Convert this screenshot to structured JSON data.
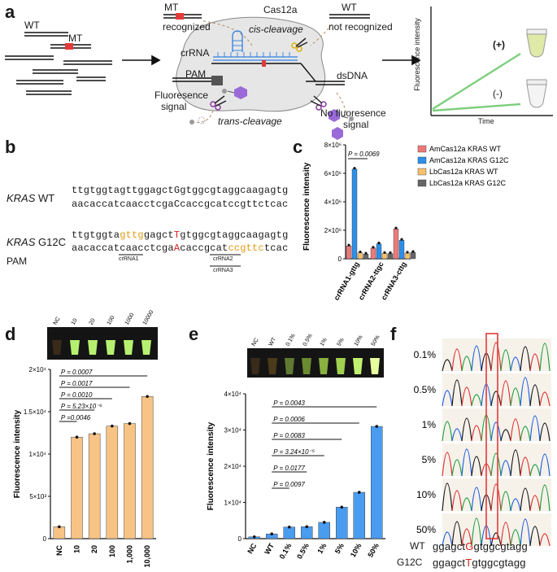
{
  "panels": [
    "a",
    "b",
    "c",
    "d",
    "e",
    "f"
  ],
  "panel_a": {
    "wt": "WT",
    "mt": "MT",
    "mt_recognized": "recognized",
    "cas": "Cas12a",
    "cis": "cis-cleavage",
    "crrna": "crRNA",
    "wt_right": "WT",
    "not_recognized": "not recognized",
    "pam": "PAM",
    "dsdna": "dsDNA",
    "fluor_signal_1": "Fluoresence",
    "fluor_signal_2": "signal",
    "trans": "trans-cleavage",
    "no_fluor_1": "No fluoresence",
    "no_fluor_2": "signal",
    "plot_ylabel": "Fluorescence intensity",
    "plot_xlabel": "Time",
    "plus": "(+)",
    "minus": "(-)"
  },
  "panel_b": {
    "kras_wt_label": "KRAS",
    "wt_suffix": "WT",
    "g12c_label": "KRAS",
    "g12c_suffix": "G12C",
    "pam": "PAM",
    "wt_top": "ttgtggtagttggagctGgtggcgtaggcaagagtg",
    "wt_bottom": "aacaccatcaacctcgaCcaccgcatccgttctcac",
    "g12c_top_1": "ttgtggta",
    "g12c_top_pam": "gttg",
    "g12c_top_2": "gagct",
    "g12c_top_mut": "T",
    "g12c_top_3": "gtggcgtaggcaagagtg",
    "g12c_bottom_1": "aacaccatcaacctcga",
    "g12c_bottom_mut": "A",
    "g12c_bottom_2": "caccgcat",
    "g12c_bottom_pam": "ccgttc",
    "g12c_bottom_3": "tcac",
    "crrna1": "crRNA1",
    "crrna2": "crRNA2",
    "crrna3": "crRNA3"
  },
  "chart_data": [
    {
      "panel": "c",
      "type": "bar",
      "ylabel": "Fluorescence intensity",
      "categories": [
        "crRNA1-gttg",
        "crRNA2-ttgc",
        "crRNA3-cttg"
      ],
      "ylim": [
        0,
        8000000
      ],
      "yticks": [
        "0",
        "2×10⁶",
        "4×10⁶",
        "6×10⁶",
        "8×10⁶"
      ],
      "series": [
        {
          "name": "AmCas12a KRAS WT",
          "values": [
            900000,
            750000,
            2100000
          ],
          "color": "#ec7a7a"
        },
        {
          "name": "AmCas12a KRAS G12C",
          "values": [
            6300000,
            1050000,
            1300000
          ],
          "color": "#2e8fe6"
        },
        {
          "name": "LbCas12a KRAS WT",
          "values": [
            420000,
            380000,
            400000
          ],
          "color": "#f6c070"
        },
        {
          "name": "LbCas12a KRAS G12C",
          "values": [
            330000,
            370000,
            450000
          ],
          "color": "#666666"
        }
      ],
      "annotations": [
        "P = 0.0069"
      ],
      "legend": "top-right"
    },
    {
      "panel": "d",
      "type": "bar",
      "ylabel": "Fluorescence intensity",
      "categories": [
        "NC",
        "10",
        "20",
        "100",
        "1,000",
        "10,000"
      ],
      "tube_labels": [
        "NC",
        "10",
        "20",
        "100",
        "1000",
        "10000"
      ],
      "values": [
        1400,
        12000,
        12400,
        13300,
        13600,
        16800
      ],
      "ylim": [
        0,
        20000
      ],
      "yticks": [
        "0",
        "5×10³",
        "1×10⁴",
        "1.5×10⁴",
        "2×10⁴"
      ],
      "color": "#f8c486",
      "annotations": [
        "P = 0.0007",
        "P = 0.0017",
        "P = 0.0010",
        "P = 5.23×10⁻⁶",
        "P =0.0046"
      ]
    },
    {
      "panel": "e",
      "type": "bar",
      "ylabel": "Fluorescence intensity",
      "categories": [
        "NC",
        "WT",
        "0.1%",
        "0.5%",
        "1%",
        "5%",
        "10%",
        "50%"
      ],
      "tube_labels": [
        "NC",
        "WT",
        "0.1%",
        "0.5%",
        "1%",
        "5%",
        "10%",
        "50%"
      ],
      "values": [
        500,
        1300,
        3200,
        3300,
        4500,
        8700,
        12800,
        31000
      ],
      "ylim": [
        0,
        40000
      ],
      "yticks": [
        "0",
        "1×10⁴",
        "2×10⁴",
        "3×10⁴",
        "4×10⁴"
      ],
      "color": "#4a9cf0",
      "annotations": [
        "P = 0.0043",
        "P = 0.0006",
        "P = 0.0083",
        "P = 3.24×10⁻⁵",
        "P = 0.0177",
        "P = 0.0097"
      ]
    }
  ],
  "panel_f": {
    "rows": [
      "0.1%",
      "0.5%",
      "1%",
      "5%",
      "10%",
      "50%"
    ],
    "wt_label": "WT",
    "wt_seq_1": "ggagct",
    "wt_seq_mut": "G",
    "wt_seq_2": "gtggcgtagg",
    "g12c_label": "G12C",
    "g12c_seq_1": "ggagct",
    "g12c_seq_mut": "T",
    "g12c_seq_2": "gtggcgtagg"
  },
  "colors": {
    "green_line": "#7ccf7c",
    "mutation_red": "#d62020",
    "pam_orange": "#e09a10"
  }
}
